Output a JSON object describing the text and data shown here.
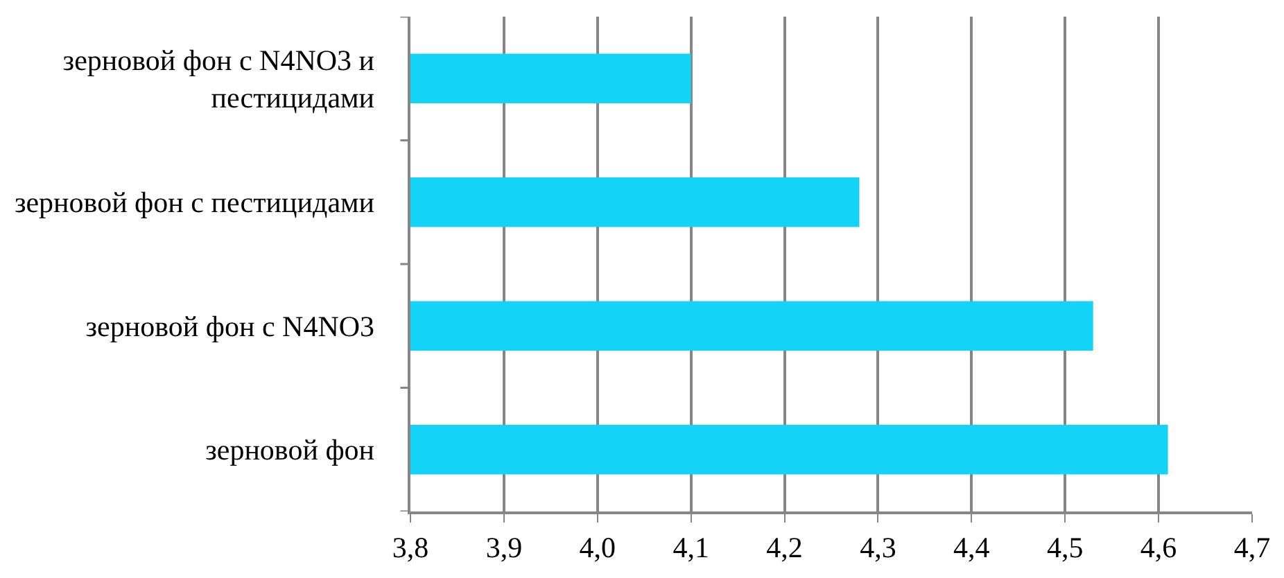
{
  "chart_data": {
    "type": "bar",
    "orientation": "horizontal",
    "categories": [
      "зерновой фон с N4NO3 и пестицидами",
      "зерновой фон с пестицидами",
      "зерновой фон с N4NO3",
      "зерновой фон"
    ],
    "values": [
      4.1,
      4.28,
      4.53,
      4.61
    ],
    "color": "#13d3f7",
    "xlim": [
      3.8,
      4.7
    ],
    "xticks": [
      {
        "value": 3.8,
        "label": "3,8"
      },
      {
        "value": 3.9,
        "label": "3,9"
      },
      {
        "value": 4.0,
        "label": "4,0"
      },
      {
        "value": 4.1,
        "label": "4,1"
      },
      {
        "value": 4.2,
        "label": "4,2"
      },
      {
        "value": 4.3,
        "label": "4,3"
      },
      {
        "value": 4.4,
        "label": "4,4"
      },
      {
        "value": 4.5,
        "label": "4,5"
      },
      {
        "value": 4.6,
        "label": "4,6"
      },
      {
        "value": 4.7,
        "label": "4,7"
      }
    ],
    "grid": "x"
  }
}
